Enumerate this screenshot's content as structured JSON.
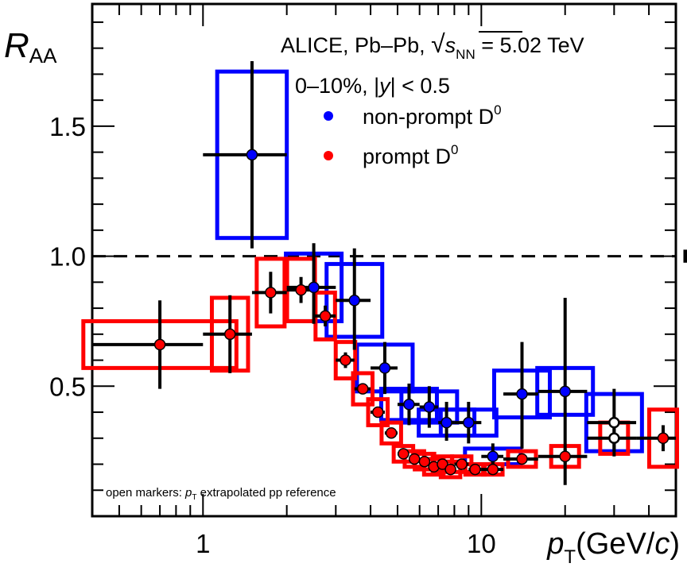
{
  "chart_data": {
    "type": "scatter",
    "x_scale": "log",
    "xlim": [
      0.4,
      50
    ],
    "ylim": [
      0.0,
      1.97
    ],
    "ylabel_main": "R",
    "ylabel_sub": "AA",
    "xlabel_main": "p",
    "xlabel_sub": "T",
    "xlabel_unit_open": "(GeV/",
    "xlabel_unit_c": "c",
    "xlabel_unit_close": ")",
    "x_ticks": [
      {
        "value": 1,
        "label": "1"
      },
      {
        "value": 10,
        "label": "10"
      }
    ],
    "y_ticks": [
      {
        "value": 0.5,
        "label": "0.5"
      },
      {
        "value": 1.0,
        "label": "1.0"
      },
      {
        "value": 1.5,
        "label": "1.5"
      }
    ],
    "reference_line": 1.0,
    "normalization_box": {
      "x": 55,
      "low": 0.975,
      "high": 1.025
    },
    "title": {
      "line1_prefix": "ALICE, Pb–Pb, ",
      "sqrt_symbol": "√",
      "sqrt_var": "s",
      "sqrt_sub": "NN",
      "line1_suffix": " = 5.02 TeV",
      "line2_prefix": "0–10%, |",
      "line2_var": "y",
      "line2_suffix": "| < 0.5"
    },
    "footnote": {
      "prefix": "open markers: ",
      "var": "p",
      "sub": "T",
      "suffix": " extrapolated pp reference"
    },
    "legend": [
      {
        "name": "non-prompt D",
        "sup": "0",
        "color": "#0000ff"
      },
      {
        "name": "prompt D",
        "sup": "0",
        "color": "#ff0000"
      }
    ],
    "series": [
      {
        "name": "non-prompt D0",
        "color": "#0000ff",
        "box_color": "#0000ff",
        "points": [
          {
            "x": 1.5,
            "y": 1.39,
            "xlo": 1.0,
            "xhi": 2.0,
            "ylo": 1.03,
            "yhi": 1.75,
            "sys": 0.32,
            "sysx": 0.25,
            "open": false
          },
          {
            "x": 2.5,
            "y": 0.88,
            "xlo": 2.0,
            "xhi": 3.0,
            "ylo": 0.74,
            "yhi": 1.05,
            "sys": 0.13,
            "sysx": 0.2,
            "open": false
          },
          {
            "x": 3.5,
            "y": 0.83,
            "xlo": 3.0,
            "xhi": 4.0,
            "ylo": 0.64,
            "yhi": 1.03,
            "sys": 0.14,
            "sysx": 0.2,
            "open": false
          },
          {
            "x": 4.5,
            "y": 0.57,
            "xlo": 4.0,
            "xhi": 5.0,
            "ylo": 0.47,
            "yhi": 0.67,
            "sys": 0.09,
            "sysx": 0.2,
            "open": false
          },
          {
            "x": 5.5,
            "y": 0.43,
            "xlo": 5.0,
            "xhi": 6.0,
            "ylo": 0.35,
            "yhi": 0.51,
            "sys": 0.06,
            "sysx": 0.2,
            "open": false
          },
          {
            "x": 6.5,
            "y": 0.42,
            "xlo": 6.0,
            "xhi": 7.0,
            "ylo": 0.34,
            "yhi": 0.5,
            "sys": 0.06,
            "sysx": 0.2,
            "open": false
          },
          {
            "x": 7.5,
            "y": 0.36,
            "xlo": 7.0,
            "xhi": 8.0,
            "ylo": 0.29,
            "yhi": 0.44,
            "sys": 0.05,
            "sysx": 0.2,
            "open": false
          },
          {
            "x": 9.0,
            "y": 0.36,
            "xlo": 8.0,
            "xhi": 10.0,
            "ylo": 0.28,
            "yhi": 0.44,
            "sys": 0.05,
            "sysx": 0.2,
            "open": false
          },
          {
            "x": 11.0,
            "y": 0.23,
            "xlo": 10.0,
            "xhi": 12.0,
            "ylo": 0.18,
            "yhi": 0.28,
            "sys": 0.03,
            "sysx": 0.2,
            "open": false
          },
          {
            "x": 14.0,
            "y": 0.47,
            "xlo": 12.0,
            "xhi": 16.0,
            "ylo": 0.26,
            "yhi": 0.67,
            "sys": 0.09,
            "sysx": 0.2,
            "open": false
          },
          {
            "x": 20.0,
            "y": 0.48,
            "xlo": 16.0,
            "xhi": 24.0,
            "ylo": 0.12,
            "yhi": 0.84,
            "sys": 0.09,
            "sysx": 0.2,
            "open": false
          },
          {
            "x": 30.0,
            "y": 0.36,
            "xlo": 24.0,
            "xhi": 36.0,
            "ylo": 0.23,
            "yhi": 0.49,
            "sys": 0.11,
            "sysx": 0.2,
            "open": true
          }
        ]
      },
      {
        "name": "prompt D0",
        "color": "#ff0000",
        "box_color": "#ff0000",
        "points": [
          {
            "x": 0.7,
            "y": 0.66,
            "xlo": 0.4,
            "xhi": 1.0,
            "ylo": 0.49,
            "yhi": 0.83,
            "sys": 0.09,
            "sysx": 0.55,
            "open": false
          },
          {
            "x": 1.25,
            "y": 0.7,
            "xlo": 1.0,
            "xhi": 1.5,
            "ylo": 0.55,
            "yhi": 0.85,
            "sys": 0.14,
            "sysx": 0.13,
            "open": false
          },
          {
            "x": 1.75,
            "y": 0.86,
            "xlo": 1.5,
            "xhi": 2.0,
            "ylo": 0.78,
            "yhi": 0.94,
            "sys": 0.13,
            "sysx": 0.1,
            "open": false
          },
          {
            "x": 2.25,
            "y": 0.87,
            "xlo": 2.0,
            "xhi": 2.5,
            "ylo": 0.82,
            "yhi": 0.92,
            "sys": 0.12,
            "sysx": 0.1,
            "open": false
          },
          {
            "x": 2.75,
            "y": 0.77,
            "xlo": 2.5,
            "xhi": 3.0,
            "ylo": 0.73,
            "yhi": 0.81,
            "sys": 0.09,
            "sysx": 0.07,
            "open": false
          },
          {
            "x": 3.25,
            "y": 0.6,
            "xlo": 3.0,
            "xhi": 3.5,
            "ylo": 0.57,
            "yhi": 0.63,
            "sys": 0.07,
            "sysx": 0.07,
            "open": false
          },
          {
            "x": 3.75,
            "y": 0.49,
            "xlo": 3.5,
            "xhi": 4.0,
            "ylo": 0.47,
            "yhi": 0.51,
            "sys": 0.06,
            "sysx": 0.07,
            "open": false
          },
          {
            "x": 4.25,
            "y": 0.4,
            "xlo": 4.0,
            "xhi": 4.5,
            "ylo": 0.38,
            "yhi": 0.42,
            "sys": 0.05,
            "sysx": 0.07,
            "open": false
          },
          {
            "x": 4.75,
            "y": 0.32,
            "xlo": 4.5,
            "xhi": 5.0,
            "ylo": 0.3,
            "yhi": 0.34,
            "sys": 0.04,
            "sysx": 0.07,
            "open": false
          },
          {
            "x": 5.25,
            "y": 0.24,
            "xlo": 5.0,
            "xhi": 5.5,
            "ylo": 0.22,
            "yhi": 0.26,
            "sys": 0.03,
            "sysx": 0.07,
            "open": false
          },
          {
            "x": 5.75,
            "y": 0.22,
            "xlo": 5.5,
            "xhi": 6.0,
            "ylo": 0.2,
            "yhi": 0.24,
            "sys": 0.03,
            "sysx": 0.07,
            "open": false
          },
          {
            "x": 6.25,
            "y": 0.21,
            "xlo": 6.0,
            "xhi": 6.5,
            "ylo": 0.19,
            "yhi": 0.23,
            "sys": 0.03,
            "sysx": 0.07,
            "open": false
          },
          {
            "x": 6.75,
            "y": 0.19,
            "xlo": 6.5,
            "xhi": 7.0,
            "ylo": 0.17,
            "yhi": 0.21,
            "sys": 0.03,
            "sysx": 0.07,
            "open": false
          },
          {
            "x": 7.25,
            "y": 0.2,
            "xlo": 7.0,
            "xhi": 7.5,
            "ylo": 0.18,
            "yhi": 0.22,
            "sys": 0.03,
            "sysx": 0.07,
            "open": false
          },
          {
            "x": 7.75,
            "y": 0.18,
            "xlo": 7.5,
            "xhi": 8.0,
            "ylo": 0.16,
            "yhi": 0.2,
            "sys": 0.03,
            "sysx": 0.07,
            "open": false
          },
          {
            "x": 8.5,
            "y": 0.2,
            "xlo": 8.0,
            "xhi": 9.0,
            "ylo": 0.18,
            "yhi": 0.22,
            "sys": 0.03,
            "sysx": 0.07,
            "open": false
          },
          {
            "x": 9.5,
            "y": 0.18,
            "xlo": 9.0,
            "xhi": 10.0,
            "ylo": 0.16,
            "yhi": 0.2,
            "sys": 0.02,
            "sysx": 0.07,
            "open": false
          },
          {
            "x": 11.0,
            "y": 0.18,
            "xlo": 10.0,
            "xhi": 12.0,
            "ylo": 0.16,
            "yhi": 0.2,
            "sys": 0.02,
            "sysx": 0.07,
            "open": false
          },
          {
            "x": 14.0,
            "y": 0.22,
            "xlo": 12.0,
            "xhi": 16.0,
            "ylo": 0.2,
            "yhi": 0.24,
            "sys": 0.03,
            "sysx": 0.1,
            "open": false
          },
          {
            "x": 20.0,
            "y": 0.23,
            "xlo": 16.0,
            "xhi": 24.0,
            "ylo": 0.2,
            "yhi": 0.26,
            "sys": 0.04,
            "sysx": 0.1,
            "open": false
          },
          {
            "x": 30.0,
            "y": 0.3,
            "xlo": 24.0,
            "xhi": 36.0,
            "ylo": 0.25,
            "yhi": 0.35,
            "sys": 0.06,
            "sysx": 0.1,
            "open": true
          },
          {
            "x": 45.0,
            "y": 0.3,
            "xlo": 36.0,
            "xhi": 50.0,
            "ylo": 0.25,
            "yhi": 0.35,
            "sys": 0.11,
            "sysx": 0.1,
            "open": false
          }
        ]
      }
    ]
  }
}
